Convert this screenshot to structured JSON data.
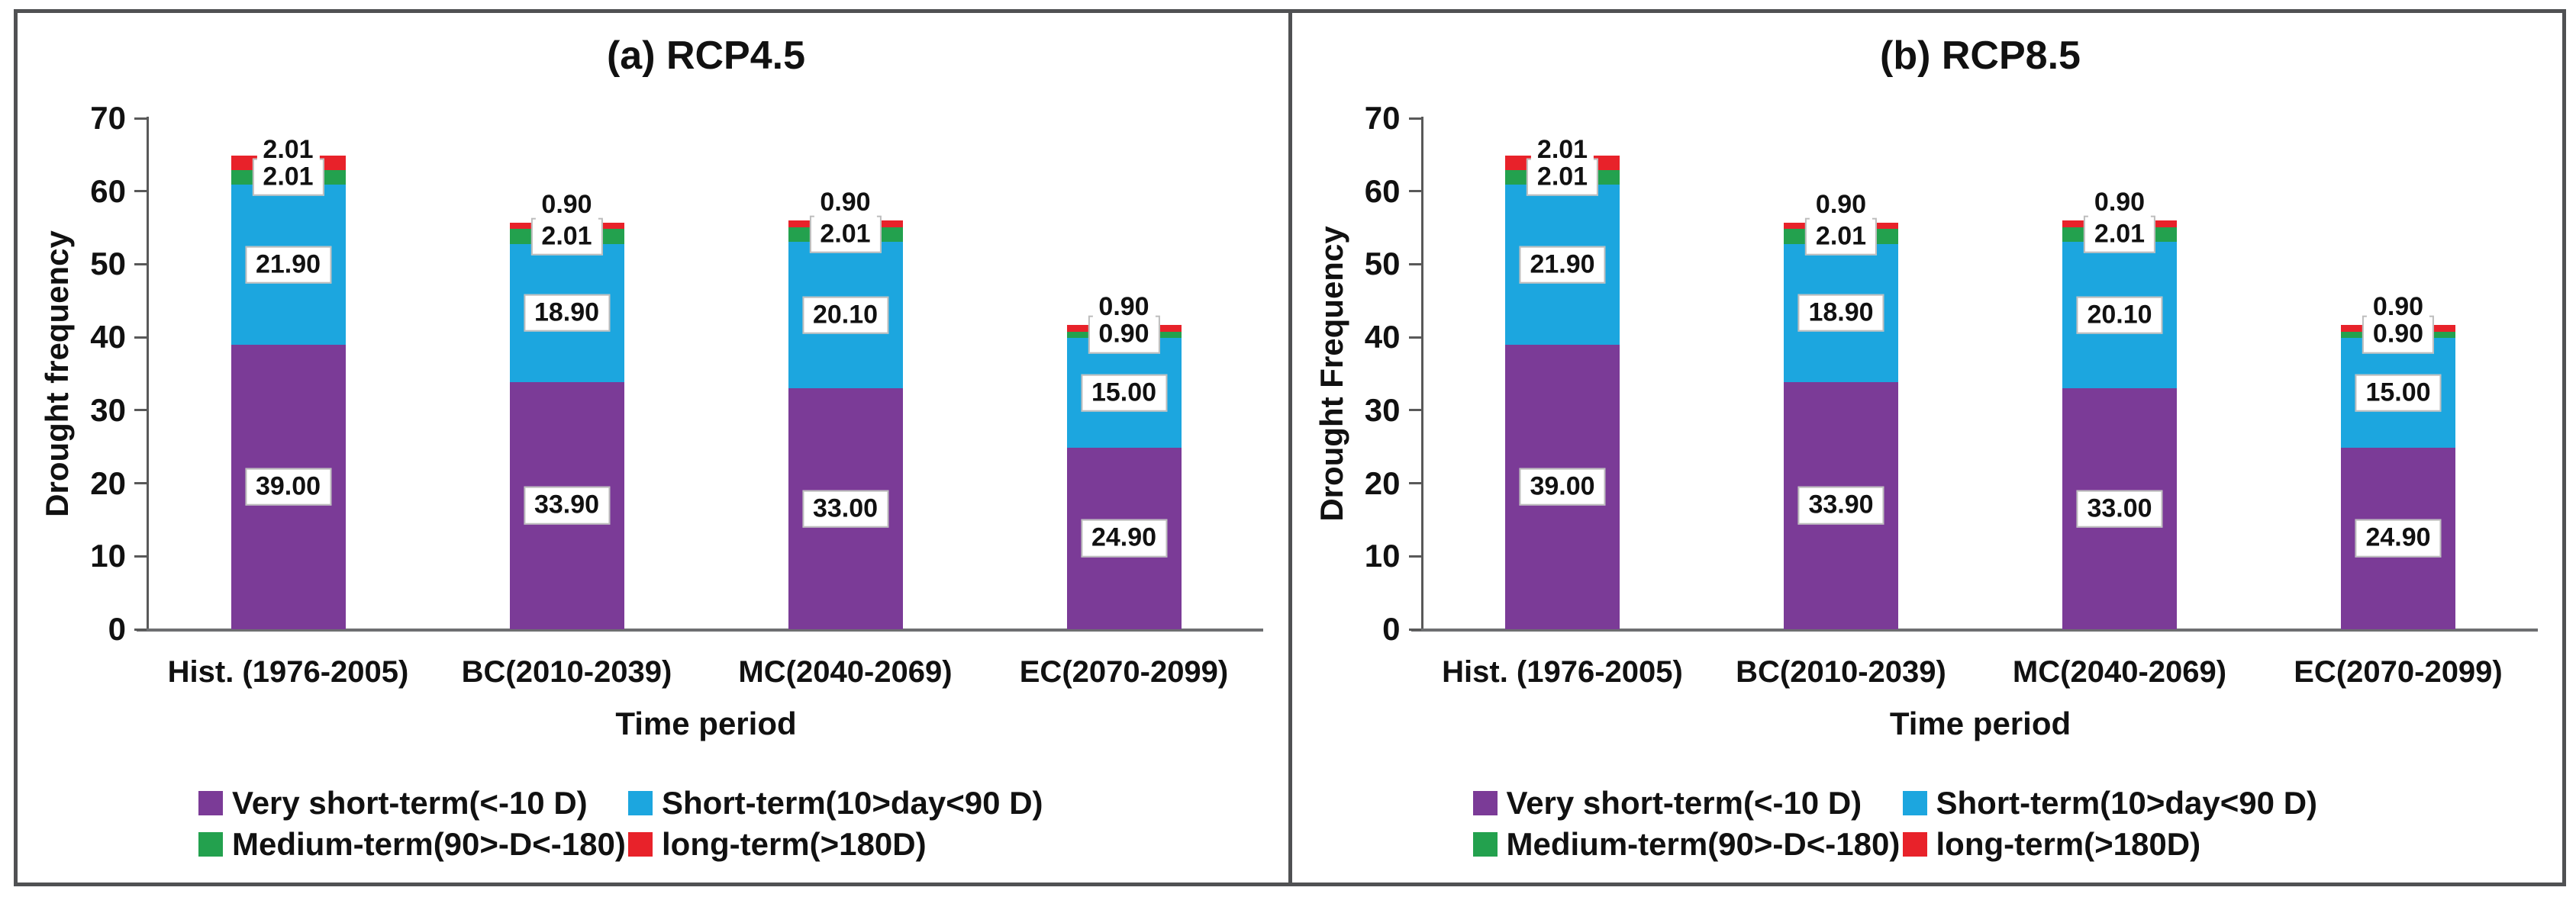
{
  "figure": {
    "frame_color": "#505153",
    "background": "#ffffff"
  },
  "colors": {
    "very_short": "#7b3b97",
    "short": "#1ca6df",
    "medium": "#23a14e",
    "long": "#e8222a"
  },
  "chart_data": [
    {
      "type": "bar",
      "stacked": true,
      "title": "(a) RCP4.5",
      "xlabel": "Time period",
      "ylabel": "Drought frequency",
      "ylim": [
        0,
        70
      ],
      "ytick_step": 10,
      "grid": false,
      "legend_position": "bottom",
      "categories": [
        "Hist. (1976-2005)",
        "BC(2010-2039)",
        "MC(2040-2069)",
        "EC(2070-2099)"
      ],
      "series": [
        {
          "name": "Very short-term(<-10 D)",
          "color_key": "very_short",
          "values": [
            39.0,
            33.9,
            33.0,
            24.9
          ]
        },
        {
          "name": "Short-term(10>day<90 D)",
          "color_key": "short",
          "values": [
            21.9,
            18.9,
            20.1,
            15.0
          ]
        },
        {
          "name": "Medium-term(90>-D<-180)",
          "color_key": "medium",
          "values": [
            2.01,
            2.01,
            2.01,
            0.9
          ]
        },
        {
          "name": "long-term(>180D)",
          "color_key": "long",
          "values": [
            2.01,
            0.9,
            0.9,
            0.9
          ]
        }
      ]
    },
    {
      "type": "bar",
      "stacked": true,
      "title": "(b) RCP8.5",
      "xlabel": "Time period",
      "ylabel": "Drought Frequency",
      "ylim": [
        0,
        70
      ],
      "ytick_step": 10,
      "grid": false,
      "legend_position": "bottom",
      "categories": [
        "Hist. (1976-2005)",
        "BC(2010-2039)",
        "MC(2040-2069)",
        "EC(2070-2099)"
      ],
      "series": [
        {
          "name": "Very short-term(<-10 D)",
          "color_key": "very_short",
          "values": [
            39.0,
            33.9,
            33.0,
            24.9
          ]
        },
        {
          "name": "Short-term(10>day<90 D)",
          "color_key": "short",
          "values": [
            21.9,
            18.9,
            20.1,
            15.0
          ]
        },
        {
          "name": "Medium-term(90>-D<-180)",
          "color_key": "medium",
          "values": [
            2.01,
            2.01,
            2.01,
            0.9
          ]
        },
        {
          "name": "long-term(>180D)",
          "color_key": "long",
          "values": [
            2.01,
            0.9,
            0.9,
            0.9
          ]
        }
      ]
    }
  ]
}
